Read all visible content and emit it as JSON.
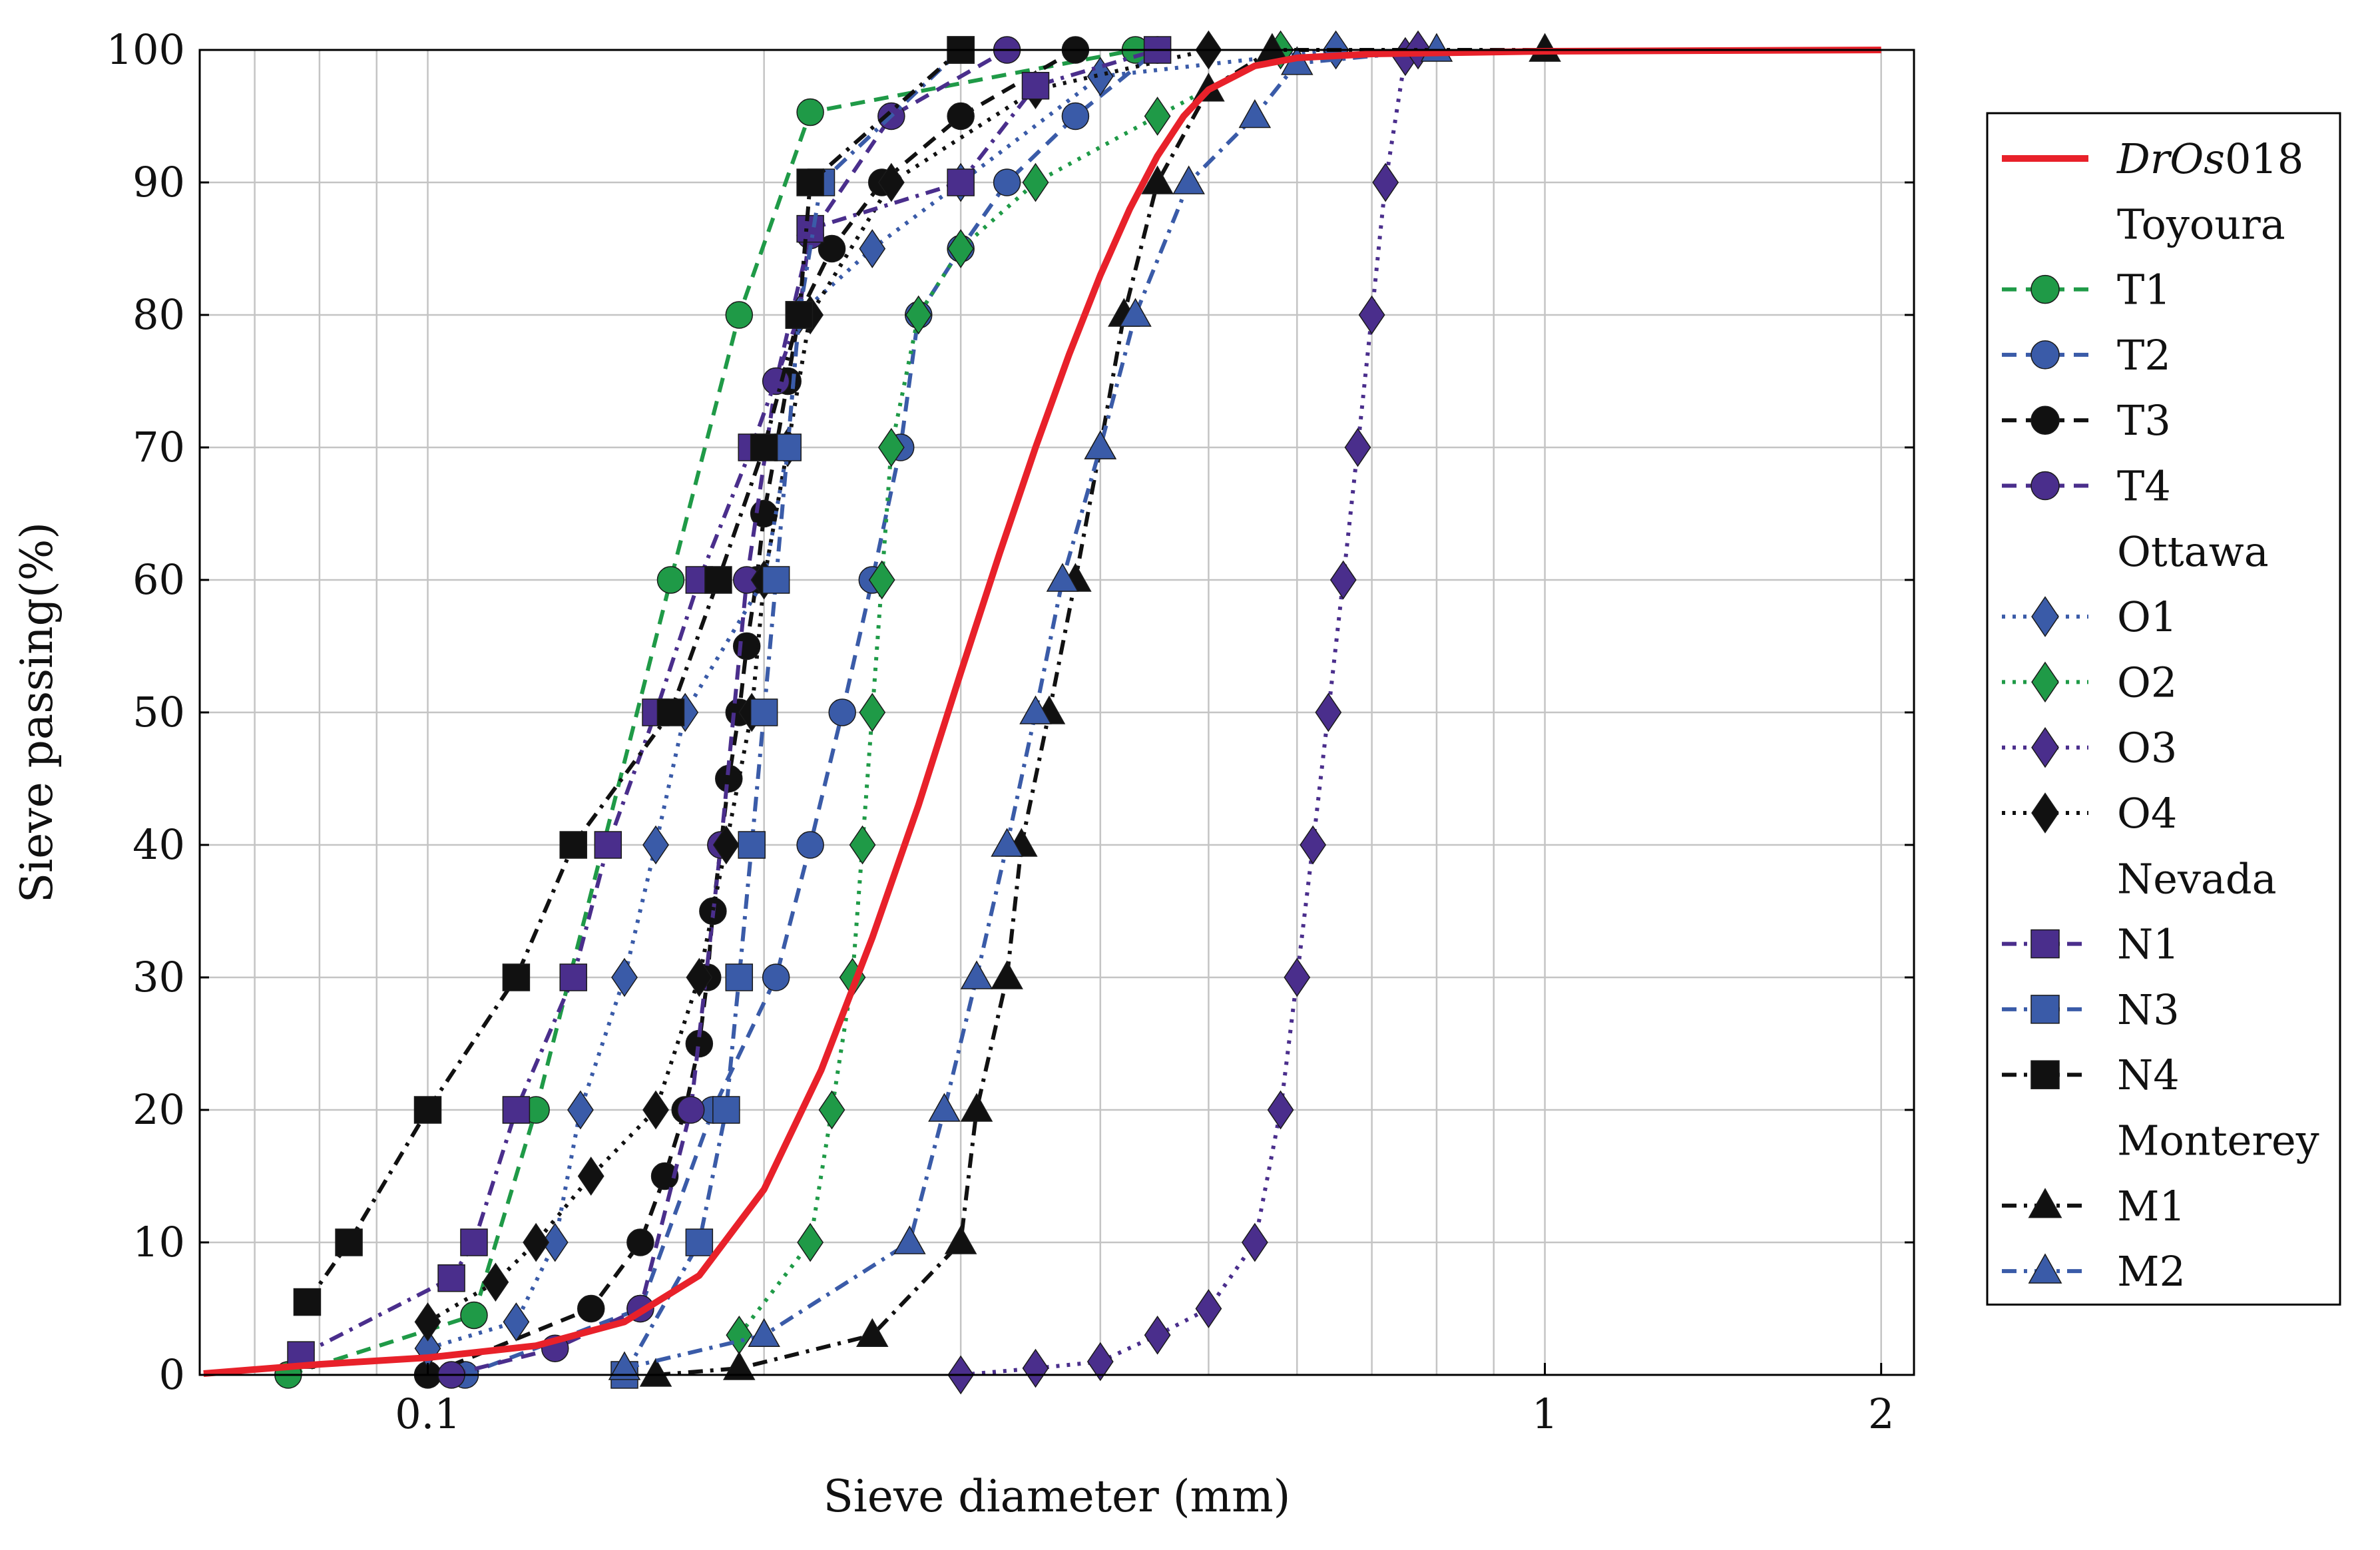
{
  "chart_data": {
    "type": "line",
    "title": "",
    "xlabel": "Sieve diameter (mm)",
    "ylabel": "Sieve passing(%)",
    "x_scale": "log",
    "xlim": [
      0.0625,
      2.14
    ],
    "ylim": [
      0,
      100
    ],
    "x_ticks": [
      {
        "value": 0.1,
        "label": "0.1"
      },
      {
        "value": 1,
        "label": "1"
      },
      {
        "value": 2,
        "label": "2"
      }
    ],
    "y_ticks": [
      0,
      10,
      20,
      30,
      40,
      50,
      60,
      70,
      80,
      90,
      100
    ],
    "grid": true,
    "legend_placement": "right",
    "legend_entries": [
      {
        "type": "series",
        "ref": "DrOs018",
        "label": "DrOs",
        "label_suffix": "018"
      },
      {
        "type": "header",
        "label": "Toyoura"
      },
      {
        "type": "series",
        "ref": "T1",
        "label": "T1"
      },
      {
        "type": "series",
        "ref": "T2",
        "label": "T2"
      },
      {
        "type": "series",
        "ref": "T3",
        "label": "T3"
      },
      {
        "type": "series",
        "ref": "T4",
        "label": "T4"
      },
      {
        "type": "header",
        "label": "Ottawa"
      },
      {
        "type": "series",
        "ref": "O1",
        "label": "O1"
      },
      {
        "type": "series",
        "ref": "O2",
        "label": "O2"
      },
      {
        "type": "series",
        "ref": "O3",
        "label": "O3"
      },
      {
        "type": "series",
        "ref": "O4",
        "label": "O4"
      },
      {
        "type": "header",
        "label": "Nevada"
      },
      {
        "type": "series",
        "ref": "N1",
        "label": "N1"
      },
      {
        "type": "series",
        "ref": "N3",
        "label": "N3"
      },
      {
        "type": "series",
        "ref": "N4",
        "label": "N4"
      },
      {
        "type": "header",
        "label": "Monterey"
      },
      {
        "type": "series",
        "ref": "M1",
        "label": "M1"
      },
      {
        "type": "series",
        "ref": "M2",
        "label": "M2"
      }
    ],
    "series": [
      {
        "id": "DrOs018",
        "color": "#e8212a",
        "style": "solid",
        "marker": "none",
        "points": [
          [
            0.063,
            0.1
          ],
          [
            0.08,
            0.8
          ],
          [
            0.1,
            1.3
          ],
          [
            0.125,
            2.2
          ],
          [
            0.15,
            4
          ],
          [
            0.175,
            7.5
          ],
          [
            0.2,
            14
          ],
          [
            0.225,
            23
          ],
          [
            0.25,
            33
          ],
          [
            0.275,
            43
          ],
          [
            0.3,
            53
          ],
          [
            0.325,
            62
          ],
          [
            0.35,
            70
          ],
          [
            0.375,
            77
          ],
          [
            0.4,
            83
          ],
          [
            0.425,
            88
          ],
          [
            0.45,
            92
          ],
          [
            0.475,
            95
          ],
          [
            0.5,
            97
          ],
          [
            0.55,
            98.8
          ],
          [
            0.6,
            99.4
          ],
          [
            0.7,
            99.7
          ],
          [
            1,
            99.9
          ],
          [
            2,
            100
          ]
        ]
      },
      {
        "id": "T1",
        "color": "#1f9a47",
        "style": "dashed",
        "marker": "circle",
        "points": [
          [
            0.075,
            0
          ],
          [
            0.11,
            4.5
          ],
          [
            0.125,
            20
          ],
          [
            0.165,
            60
          ],
          [
            0.19,
            80
          ],
          [
            0.22,
            95.3
          ],
          [
            0.43,
            100
          ]
        ]
      },
      {
        "id": "T2",
        "color": "#3a5ba8",
        "style": "dashed",
        "marker": "circle",
        "points": [
          [
            0.108,
            0
          ],
          [
            0.155,
            5
          ],
          [
            0.18,
            20
          ],
          [
            0.205,
            30
          ],
          [
            0.22,
            40
          ],
          [
            0.235,
            50
          ],
          [
            0.25,
            60
          ],
          [
            0.265,
            70
          ],
          [
            0.275,
            80
          ],
          [
            0.3,
            85
          ],
          [
            0.33,
            90
          ],
          [
            0.38,
            95
          ],
          [
            0.45,
            100
          ]
        ]
      },
      {
        "id": "T3",
        "color": "#111111",
        "style": "dashed",
        "marker": "circle",
        "points": [
          [
            0.1,
            0
          ],
          [
            0.14,
            5
          ],
          [
            0.155,
            10
          ],
          [
            0.163,
            15
          ],
          [
            0.17,
            20
          ],
          [
            0.175,
            25
          ],
          [
            0.178,
            30
          ],
          [
            0.18,
            35
          ],
          [
            0.183,
            40
          ],
          [
            0.186,
            45
          ],
          [
            0.19,
            50
          ],
          [
            0.193,
            55
          ],
          [
            0.197,
            60
          ],
          [
            0.2,
            65
          ],
          [
            0.205,
            70
          ],
          [
            0.21,
            75
          ],
          [
            0.215,
            80
          ],
          [
            0.23,
            85
          ],
          [
            0.255,
            90
          ],
          [
            0.3,
            95
          ],
          [
            0.38,
            100
          ]
        ]
      },
      {
        "id": "T4",
        "color": "#4a2e8c",
        "style": "dashed",
        "marker": "circle",
        "points": [
          [
            0.105,
            0
          ],
          [
            0.13,
            2
          ],
          [
            0.155,
            5
          ],
          [
            0.172,
            20
          ],
          [
            0.183,
            40
          ],
          [
            0.193,
            60
          ],
          [
            0.205,
            75
          ],
          [
            0.22,
            86
          ],
          [
            0.26,
            95
          ],
          [
            0.33,
            100
          ]
        ]
      },
      {
        "id": "O1",
        "color": "#3a5ba8",
        "style": "dotted",
        "marker": "diamond",
        "points": [
          [
            0.1,
            2
          ],
          [
            0.12,
            4
          ],
          [
            0.13,
            10
          ],
          [
            0.137,
            20
          ],
          [
            0.15,
            30
          ],
          [
            0.16,
            40
          ],
          [
            0.17,
            50
          ],
          [
            0.2,
            60
          ],
          [
            0.21,
            70
          ],
          [
            0.215,
            80
          ],
          [
            0.25,
            85
          ],
          [
            0.3,
            90
          ],
          [
            0.4,
            98
          ],
          [
            0.65,
            100
          ]
        ]
      },
      {
        "id": "O2",
        "color": "#1f9a47",
        "style": "dotted",
        "marker": "diamond",
        "points": [
          [
            0.19,
            3
          ],
          [
            0.22,
            10
          ],
          [
            0.23,
            20
          ],
          [
            0.24,
            30
          ],
          [
            0.245,
            40
          ],
          [
            0.25,
            50
          ],
          [
            0.255,
            60
          ],
          [
            0.26,
            70
          ],
          [
            0.275,
            80
          ],
          [
            0.3,
            85
          ],
          [
            0.35,
            90
          ],
          [
            0.45,
            95
          ],
          [
            0.58,
            100
          ]
        ]
      },
      {
        "id": "O3",
        "color": "#4a2e8c",
        "style": "dotted",
        "marker": "diamond",
        "points": [
          [
            0.3,
            0
          ],
          [
            0.35,
            0.5
          ],
          [
            0.4,
            1
          ],
          [
            0.45,
            3
          ],
          [
            0.5,
            5
          ],
          [
            0.55,
            10
          ],
          [
            0.58,
            20
          ],
          [
            0.6,
            30
          ],
          [
            0.62,
            40
          ],
          [
            0.64,
            50
          ],
          [
            0.66,
            60
          ],
          [
            0.68,
            70
          ],
          [
            0.7,
            80
          ],
          [
            0.72,
            90
          ],
          [
            0.75,
            99.5
          ],
          [
            0.77,
            100
          ]
        ]
      },
      {
        "id": "O4",
        "color": "#111111",
        "style": "dotted",
        "marker": "diamond",
        "points": [
          [
            0.1,
            4
          ],
          [
            0.115,
            7
          ],
          [
            0.125,
            10
          ],
          [
            0.14,
            15
          ],
          [
            0.16,
            20
          ],
          [
            0.175,
            30
          ],
          [
            0.185,
            40
          ],
          [
            0.195,
            50
          ],
          [
            0.2,
            60
          ],
          [
            0.21,
            70
          ],
          [
            0.22,
            80
          ],
          [
            0.26,
            90
          ],
          [
            0.35,
            97
          ],
          [
            0.5,
            100
          ]
        ]
      },
      {
        "id": "N1",
        "color": "#4a2e8c",
        "style": "dash-dot",
        "marker": "square",
        "points": [
          [
            0.077,
            1.5
          ],
          [
            0.105,
            7.3
          ],
          [
            0.11,
            10
          ],
          [
            0.12,
            20
          ],
          [
            0.135,
            30
          ],
          [
            0.145,
            40
          ],
          [
            0.16,
            50
          ],
          [
            0.175,
            60
          ],
          [
            0.195,
            70
          ],
          [
            0.215,
            80
          ],
          [
            0.22,
            86.5
          ],
          [
            0.3,
            90
          ],
          [
            0.35,
            97.3
          ],
          [
            0.45,
            100
          ]
        ]
      },
      {
        "id": "N3",
        "color": "#3a5ba8",
        "style": "dash-dot",
        "marker": "square",
        "points": [
          [
            0.15,
            0
          ],
          [
            0.175,
            10
          ],
          [
            0.185,
            20
          ],
          [
            0.19,
            30
          ],
          [
            0.195,
            40
          ],
          [
            0.2,
            50
          ],
          [
            0.205,
            60
          ],
          [
            0.21,
            70
          ],
          [
            0.215,
            80
          ],
          [
            0.225,
            90
          ],
          [
            0.3,
            100
          ]
        ]
      },
      {
        "id": "N4",
        "color": "#111111",
        "style": "dash-dot",
        "marker": "square",
        "points": [
          [
            0.078,
            5.5
          ],
          [
            0.085,
            10
          ],
          [
            0.1,
            20
          ],
          [
            0.12,
            30
          ],
          [
            0.135,
            40
          ],
          [
            0.165,
            50
          ],
          [
            0.182,
            60
          ],
          [
            0.2,
            70
          ],
          [
            0.215,
            80
          ],
          [
            0.22,
            90
          ],
          [
            0.3,
            100
          ]
        ]
      },
      {
        "id": "M1",
        "color": "#111111",
        "style": "dash-dot",
        "marker": "triangle",
        "points": [
          [
            0.16,
            0
          ],
          [
            0.19,
            0.5
          ],
          [
            0.25,
            3
          ],
          [
            0.3,
            10
          ],
          [
            0.31,
            20
          ],
          [
            0.33,
            30
          ],
          [
            0.34,
            40
          ],
          [
            0.36,
            50
          ],
          [
            0.38,
            60
          ],
          [
            0.4,
            70
          ],
          [
            0.42,
            80
          ],
          [
            0.45,
            90
          ],
          [
            0.5,
            97
          ],
          [
            0.57,
            100
          ],
          [
            1,
            100
          ]
        ]
      },
      {
        "id": "M2",
        "color": "#3a5ba8",
        "style": "dash-dot",
        "marker": "triangle",
        "points": [
          [
            0.15,
            0.5
          ],
          [
            0.2,
            3
          ],
          [
            0.27,
            10
          ],
          [
            0.29,
            20
          ],
          [
            0.31,
            30
          ],
          [
            0.33,
            40
          ],
          [
            0.35,
            50
          ],
          [
            0.37,
            60
          ],
          [
            0.4,
            70
          ],
          [
            0.43,
            80
          ],
          [
            0.48,
            90
          ],
          [
            0.55,
            95
          ],
          [
            0.6,
            99
          ],
          [
            0.8,
            100
          ]
        ]
      }
    ]
  }
}
